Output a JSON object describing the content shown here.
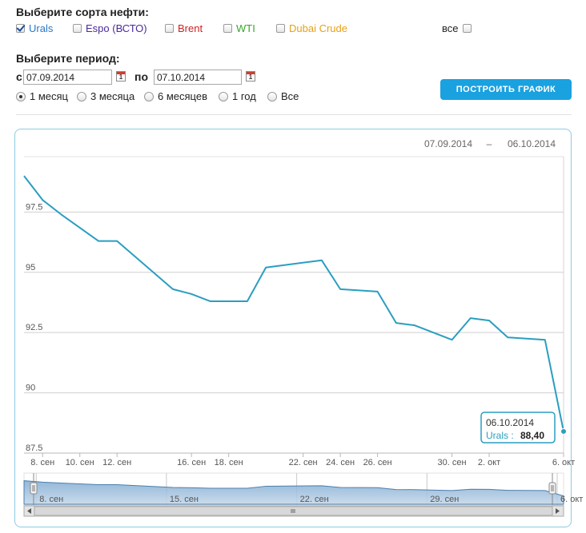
{
  "oil_section": {
    "title": "Выберите сорта нефти:",
    "options": [
      {
        "label": "Urals",
        "checked": true,
        "color": "#2a78c8"
      },
      {
        "label": "Espo (ВСТО)",
        "checked": false,
        "color": "#4b2a9a"
      },
      {
        "label": "Brent",
        "checked": false,
        "color": "#cc2222"
      },
      {
        "label": "WTI",
        "checked": false,
        "color": "#3aa62f"
      },
      {
        "label": "Dubai Crude",
        "checked": false,
        "color": "#e6a116"
      }
    ],
    "all_label": "все"
  },
  "period_section": {
    "title": "Выберите период:",
    "from_label": "с",
    "from_value": "07.09.2014",
    "to_label": "по",
    "to_value": "07.10.2014",
    "calendar_day": "1",
    "ranges": [
      "1 месяц",
      "3 месяца",
      "6 месяцев",
      "1 год",
      "Все"
    ],
    "selected_range": "1 месяц"
  },
  "build_button": "ПОСТРОИТЬ ГРАФИК",
  "chart_header": {
    "from": "07.09.2014",
    "dash": "–",
    "to": "06.10.2014"
  },
  "tooltip": {
    "date": "06.10.2014",
    "series": "Urals :",
    "value": "88,40"
  },
  "navigator": {
    "labels": [
      "8. сен",
      "15. сен",
      "22. сен",
      "29. сен",
      "6. окт"
    ]
  },
  "chart_data": {
    "type": "line",
    "title": "",
    "xlabel": "",
    "ylabel": "",
    "series": [
      {
        "name": "Urals",
        "color": "#2a9ec0",
        "x": [
          "07.09",
          "08.09",
          "09.09",
          "11.09",
          "12.09",
          "15.09",
          "16.09",
          "17.09",
          "19.09",
          "20.09",
          "23.09",
          "24.09",
          "26.09",
          "27.09",
          "28.09",
          "30.09",
          "01.10",
          "02.10",
          "03.10",
          "05.10",
          "06.10"
        ],
        "y": [
          99.0,
          98.0,
          97.4,
          96.3,
          96.3,
          94.3,
          94.1,
          93.8,
          93.8,
          95.2,
          95.5,
          94.3,
          94.2,
          92.9,
          92.8,
          92.2,
          93.1,
          93.0,
          92.3,
          92.2,
          88.4
        ]
      }
    ],
    "x_ticks": [
      "8. сен",
      "10. сен",
      "12. сен",
      "16. сен",
      "18. сен",
      "22. сен",
      "24. сен",
      "26. сен",
      "30. сен",
      "2. окт",
      "6. окт"
    ],
    "y_ticks": [
      "87.5",
      "90",
      "92.5",
      "95",
      "97.5"
    ],
    "ylim": [
      87.5,
      99.8
    ],
    "grid": true,
    "legend": "none"
  }
}
